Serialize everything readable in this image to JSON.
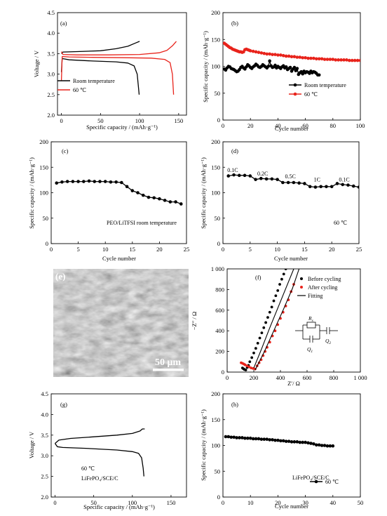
{
  "chart_data": [
    {
      "id": "a",
      "type": "line",
      "panel_label": "(a)",
      "xlabel": "Specific capacity / (mAh·g⁻¹)",
      "ylabel": "Voltage / V",
      "xlim": [
        -5,
        160
      ],
      "ylim": [
        2.0,
        4.5
      ],
      "xticks": [
        0,
        50,
        100,
        150
      ],
      "yticks": [
        2.0,
        2.5,
        3.0,
        3.5,
        4.0,
        4.5
      ],
      "ytick_labels": [
        "2.0",
        "2.5",
        "3.0",
        "3.5",
        "4.0",
        "4.5"
      ],
      "legend_position": "center-left",
      "series": [
        {
          "name": "Room temperature",
          "color": "#000000",
          "x": [
            0,
            2,
            20,
            50,
            70,
            85,
            95,
            100
          ],
          "y": [
            3.5,
            3.54,
            3.55,
            3.57,
            3.62,
            3.68,
            3.76,
            3.8
          ]
        },
        {
          "name": "",
          "color": "#000000",
          "x": [
            0,
            1,
            10,
            40,
            70,
            85,
            93,
            97,
            99.5
          ],
          "y": [
            3.05,
            3.38,
            3.35,
            3.32,
            3.3,
            3.27,
            3.2,
            3.0,
            2.5
          ]
        },
        {
          "name": "60 ℃",
          "color": "#e8231b",
          "x": [
            0,
            2,
            20,
            60,
            100,
            125,
            135,
            142,
            147
          ],
          "y": [
            3.55,
            3.48,
            3.47,
            3.47,
            3.48,
            3.52,
            3.58,
            3.69,
            3.8
          ]
        },
        {
          "name": "",
          "color": "#e8231b",
          "x": [
            0,
            1,
            10,
            40,
            80,
            115,
            132,
            139,
            142,
            143.5
          ],
          "y": [
            2.85,
            3.43,
            3.42,
            3.41,
            3.4,
            3.39,
            3.36,
            3.28,
            3.0,
            2.5
          ]
        }
      ]
    },
    {
      "id": "b",
      "type": "line",
      "panel_label": "(b)",
      "xlabel": "Cycle number",
      "ylabel": "Specific capacity / (mAh·g⁻¹)",
      "xlim": [
        0,
        100
      ],
      "ylim": [
        0,
        200
      ],
      "xticks": [
        0,
        20,
        40,
        60,
        80,
        100
      ],
      "yticks": [
        0,
        50,
        100,
        150,
        200
      ],
      "legend_position": "bottom-right",
      "series": [
        {
          "name": "Room temperature",
          "color": "#000000",
          "x": [
            1,
            2,
            3,
            4,
            5,
            6,
            7,
            8,
            9,
            10,
            11,
            12,
            13,
            14,
            15,
            16,
            17,
            18,
            19,
            20,
            21,
            22,
            23,
            24,
            25,
            26,
            27,
            28,
            29,
            30,
            31,
            32,
            33,
            34,
            35,
            36,
            37,
            38,
            39,
            40,
            41,
            42,
            43,
            44,
            45,
            46,
            47,
            48,
            49,
            50,
            51,
            52,
            53,
            54,
            55,
            56,
            57,
            58,
            59,
            60,
            61,
            62,
            63,
            64,
            65,
            66,
            67,
            68,
            69,
            70
          ],
          "y": [
            95,
            93,
            97,
            100,
            99,
            96,
            95,
            94,
            92,
            90,
            91,
            94,
            98,
            100,
            97,
            95,
            99,
            103,
            101,
            98,
            96,
            99,
            101,
            104,
            102,
            99,
            98,
            100,
            103,
            101,
            99,
            97,
            100,
            110,
            101,
            98,
            99,
            102,
            97,
            100,
            98,
            96,
            99,
            101,
            97,
            99,
            94,
            96,
            98,
            91,
            95,
            98,
            92,
            96,
            85,
            88,
            90,
            86,
            91,
            88,
            90,
            89,
            87,
            91,
            88,
            90,
            89,
            87,
            84,
            84
          ]
        },
        {
          "name": "60 ℃",
          "color": "#e8231b",
          "x": [
            1,
            2,
            3,
            4,
            5,
            6,
            7,
            8,
            9,
            10,
            11,
            12,
            13,
            14,
            15,
            16,
            17,
            18,
            19,
            20,
            22,
            24,
            26,
            28,
            30,
            32,
            34,
            36,
            38,
            40,
            42,
            44,
            46,
            48,
            50,
            52,
            54,
            56,
            58,
            60,
            62,
            64,
            66,
            68,
            70,
            72,
            74,
            76,
            78,
            80,
            82,
            84,
            86,
            88,
            90,
            92,
            94,
            96,
            98,
            100
          ],
          "y": [
            143,
            141,
            139,
            137,
            135,
            134,
            132,
            131,
            130,
            129,
            128,
            127,
            127,
            126,
            127,
            131,
            132,
            131,
            130,
            129,
            128,
            127,
            126,
            125,
            124,
            123,
            123,
            122,
            122,
            121,
            121,
            120,
            119,
            119,
            118,
            118,
            117,
            117,
            116,
            116,
            115,
            115,
            115,
            114,
            114,
            114,
            113,
            113,
            113,
            113,
            112,
            112,
            112,
            112,
            112,
            111,
            111,
            111,
            111,
            111
          ]
        }
      ]
    },
    {
      "id": "c",
      "type": "line",
      "panel_label": "(c)",
      "annotation": "PEO/LiTFSI room temperature",
      "xlabel": "Cycle number",
      "ylabel": "Specific capacity / (mAh·g⁻¹)",
      "xlim": [
        0,
        25
      ],
      "ylim": [
        0,
        200
      ],
      "xticks": [
        0,
        5,
        10,
        15,
        20,
        25
      ],
      "yticks": [
        0,
        50,
        100,
        150,
        200
      ],
      "series": [
        {
          "name": "",
          "color": "#000000",
          "x": [
            1,
            2,
            3,
            4,
            5,
            6,
            7,
            8,
            9,
            10,
            11,
            12,
            13,
            14,
            15,
            16,
            17,
            18,
            19,
            20,
            21,
            22,
            23,
            24
          ],
          "y": [
            119,
            121,
            122,
            122,
            122,
            122,
            123,
            122,
            122,
            122,
            121,
            121,
            120,
            112,
            104,
            100,
            95,
            91,
            90,
            88,
            85,
            82,
            82,
            78
          ]
        }
      ]
    },
    {
      "id": "d",
      "type": "line",
      "panel_label": "(d)",
      "annotation": "60 ℃",
      "xlabel": "Cycle number",
      "ylabel": "Specific capacity / (mAh·g⁻¹)",
      "xlim": [
        0,
        25
      ],
      "ylim": [
        0,
        200
      ],
      "xticks": [
        0,
        5,
        10,
        15,
        20,
        25
      ],
      "yticks": [
        0,
        50,
        100,
        150,
        200
      ],
      "rate_labels": [
        {
          "text": "0.1C",
          "x": 1.8,
          "y": 141
        },
        {
          "text": "0.2C",
          "x": 7.3,
          "y": 134
        },
        {
          "text": "0.5C",
          "x": 12.4,
          "y": 128
        },
        {
          "text": "1C",
          "x": 17.3,
          "y": 122
        },
        {
          "text": "0.1C",
          "x": 22.3,
          "y": 122
        }
      ],
      "series": [
        {
          "name": "",
          "color": "#000000",
          "x": [
            1,
            2,
            3,
            4,
            5,
            6,
            7,
            8,
            9,
            10,
            11,
            12,
            13,
            14,
            15,
            16,
            17,
            18,
            19,
            20,
            21,
            22,
            23,
            24,
            25
          ],
          "y": [
            133,
            135,
            134,
            134,
            133,
            126,
            128,
            127,
            127,
            126,
            120,
            120,
            120,
            119,
            118,
            112,
            111,
            112,
            112,
            112,
            118,
            116,
            115,
            113,
            111
          ]
        }
      ]
    },
    {
      "id": "f",
      "type": "scatter",
      "panel_label": "(f)",
      "xlabel": "Z′/ Ω",
      "ylabel": "−Z″ / Ω",
      "xlim": [
        0,
        1000
      ],
      "ylim": [
        0,
        1000
      ],
      "xticks": [
        0,
        200,
        400,
        600,
        800,
        1000
      ],
      "xtick_labels": [
        "0",
        "200",
        "400",
        "600",
        "800",
        "1 000"
      ],
      "yticks": [
        0,
        200,
        400,
        600,
        800,
        1000
      ],
      "ytick_labels": [
        "0",
        "200",
        "400",
        "600",
        "800",
        "1 000"
      ],
      "legend_position": "top-right",
      "circuit_labels": {
        "r": "R",
        "r_sub": "s",
        "q1": "Q",
        "q1_sub": "1",
        "q2": "Q",
        "q2_sub": "2"
      },
      "series": [
        {
          "name": "Before cycling",
          "color": "#000000",
          "marker": "circle",
          "x": [
            115,
            122,
            130,
            140,
            150,
            160,
            170,
            185,
            200,
            215,
            230,
            245,
            260,
            275,
            290,
            305,
            320,
            335,
            350,
            365,
            380,
            395,
            410,
            425,
            440
          ],
          "y": [
            40,
            32,
            25,
            20,
            45,
            65,
            100,
            140,
            185,
            230,
            280,
            330,
            380,
            430,
            480,
            530,
            580,
            630,
            690,
            740,
            790,
            850,
            900,
            950,
            1000
          ]
        },
        {
          "name": "After cycling",
          "color": "#e8231b",
          "marker": "circle",
          "x": [
            105,
            115,
            125,
            135,
            150,
            165,
            180,
            195,
            210,
            225,
            240,
            255,
            270,
            285,
            300,
            320,
            340,
            360,
            380,
            400,
            420,
            440,
            460,
            480,
            500
          ],
          "y": [
            90,
            85,
            78,
            70,
            60,
            50,
            40,
            35,
            30,
            60,
            90,
            120,
            160,
            200,
            240,
            290,
            350,
            400,
            460,
            520,
            580,
            640,
            700,
            780,
            850
          ]
        },
        {
          "name": "Fitting",
          "color": "#000000",
          "marker": "none",
          "x": [
            200,
            260,
            320,
            380,
            440,
            500
          ],
          "y": [
            40,
            230,
            430,
            620,
            810,
            1000
          ]
        },
        {
          "name": "",
          "color": "#000000",
          "marker": "none",
          "x": [
            210,
            280,
            350,
            420,
            490,
            540
          ],
          "y": [
            20,
            200,
            400,
            600,
            810,
            1000
          ]
        }
      ]
    },
    {
      "id": "g",
      "type": "line",
      "panel_label": "(g)",
      "annotation_lines": [
        "60 ℃",
        "LiFePO₄/SCE/C"
      ],
      "xlabel": "Specific capacity / (mAh·g⁻¹)",
      "ylabel": "Voltage / V",
      "xlim": [
        -5,
        170
      ],
      "ylim": [
        2.0,
        4.5
      ],
      "xticks": [
        0,
        50,
        100,
        150
      ],
      "yticks": [
        2.0,
        2.5,
        3.0,
        3.5,
        4.0,
        4.5
      ],
      "ytick_labels": [
        "2.0",
        "2.5",
        "3.0",
        "3.5",
        "4.0",
        "4.5"
      ],
      "series": [
        {
          "name": "",
          "color": "#000000",
          "x": [
            0,
            5,
            20,
            50,
            80,
            100,
            110,
            113,
            116
          ],
          "y": [
            3.3,
            3.38,
            3.42,
            3.46,
            3.5,
            3.54,
            3.6,
            3.65,
            3.65
          ]
        },
        {
          "name": "",
          "color": "#000000",
          "x": [
            0,
            3,
            10,
            40,
            80,
            100,
            108,
            112,
            114,
            115
          ],
          "y": [
            3.3,
            3.22,
            3.2,
            3.18,
            3.14,
            3.1,
            3.06,
            2.95,
            2.7,
            2.5
          ]
        }
      ]
    },
    {
      "id": "h",
      "type": "line",
      "panel_label": "(h)",
      "annotation": "LiFePO₄/SCE/C",
      "xlabel": "Cycle number",
      "ylabel": "Specific capacity / (mAh·g⁻¹)",
      "xlim": [
        0,
        50
      ],
      "ylim": [
        0,
        200
      ],
      "xticks": [
        0,
        10,
        20,
        30,
        40,
        50
      ],
      "yticks": [
        0,
        50,
        100,
        150,
        200
      ],
      "legend_position": "bottom-right",
      "series": [
        {
          "name": "60 ℃",
          "color": "#000000",
          "x": [
            1,
            2,
            3,
            4,
            5,
            6,
            7,
            8,
            9,
            10,
            11,
            12,
            13,
            14,
            15,
            16,
            17,
            18,
            19,
            20,
            21,
            22,
            23,
            24,
            25,
            26,
            27,
            28,
            29,
            30,
            31,
            32,
            33,
            34,
            35,
            36,
            37,
            38,
            39,
            40
          ],
          "y": [
            117,
            117,
            116,
            116,
            115,
            115,
            115,
            114,
            114,
            114,
            113,
            113,
            113,
            112,
            112,
            112,
            111,
            111,
            110,
            110,
            109,
            109,
            108,
            108,
            107,
            107,
            107,
            106,
            106,
            106,
            105,
            104,
            103,
            101,
            101,
            100,
            100,
            99,
            99,
            99
          ]
        }
      ]
    }
  ],
  "sem": {
    "panel_label": "(e)",
    "scale_bar": "50 μm"
  }
}
